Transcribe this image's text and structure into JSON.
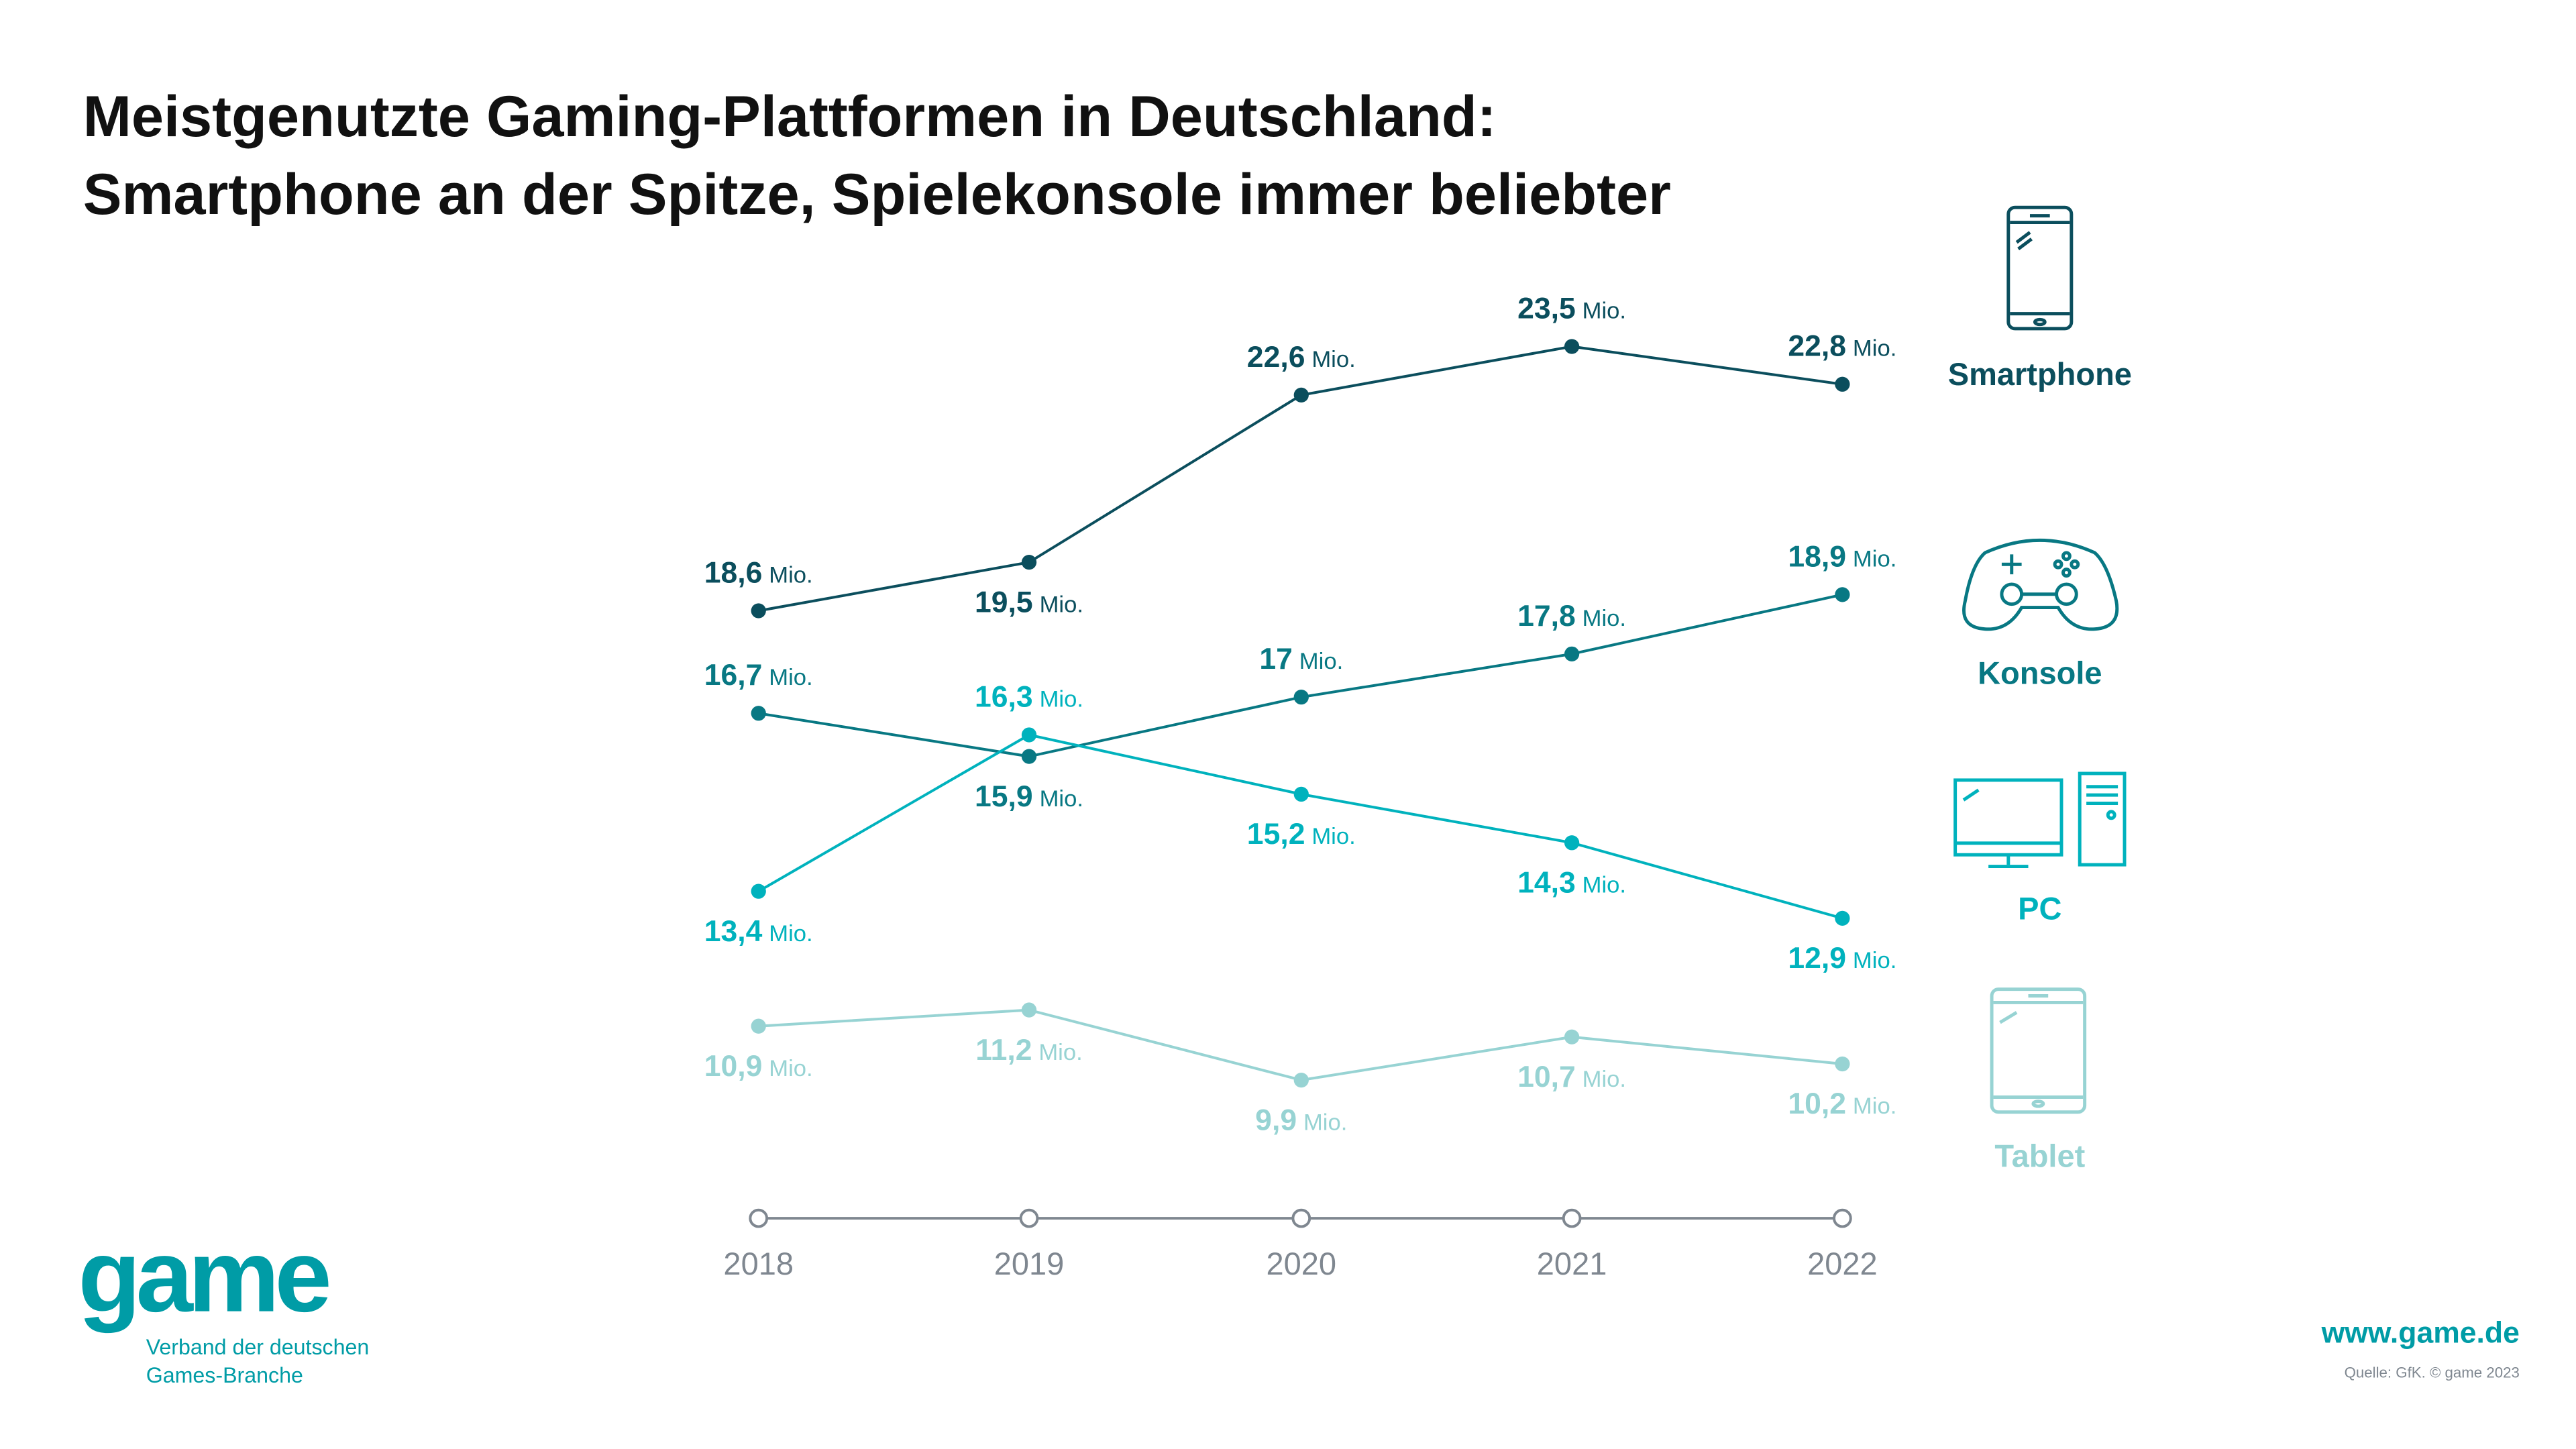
{
  "title_line1": "Meistgenutzte Gaming-Plattformen in Deutschland:",
  "title_line2": "Smartphone an der Spitze, Spielekonsole immer beliebter",
  "logo": {
    "text": "game",
    "sub1": "Verband der deutschen",
    "sub2": "Games-Branche"
  },
  "website": "www.game.de",
  "source": "Quelle: GfK. © game 2023",
  "chart_data": {
    "type": "line",
    "x": [
      "2018",
      "2019",
      "2020",
      "2021",
      "2022"
    ],
    "unit": "Mio.",
    "legend_placement": "right",
    "grid": false,
    "series": [
      {
        "name": "Smartphone",
        "icon": "smartphone-icon",
        "color": "#0b4e5d",
        "values": [
          18.6,
          19.5,
          22.6,
          23.5,
          22.8
        ],
        "labels": [
          "18,6",
          "19,5",
          "22,6",
          "23,5",
          "22,8"
        ]
      },
      {
        "name": "Konsole",
        "icon": "gamepad-icon",
        "color": "#087883",
        "values": [
          16.7,
          15.9,
          17,
          17.8,
          18.9
        ],
        "labels": [
          "16,7",
          "15,9",
          "17",
          "17,8",
          "18,9"
        ]
      },
      {
        "name": "PC",
        "icon": "desktop-pc-icon",
        "color": "#00b2bd",
        "values": [
          13.4,
          16.3,
          15.2,
          14.3,
          12.9
        ],
        "labels": [
          "13,4",
          "16,3",
          "15,2",
          "14,3",
          "12,9"
        ]
      },
      {
        "name": "Tablet",
        "icon": "tablet-icon",
        "color": "#97d3d3",
        "values": [
          10.9,
          11.2,
          9.9,
          10.7,
          10.2
        ],
        "labels": [
          "10,9",
          "11,2",
          "9,9",
          "10,7",
          "10,2"
        ]
      }
    ],
    "axis_color": "#7f8790"
  }
}
